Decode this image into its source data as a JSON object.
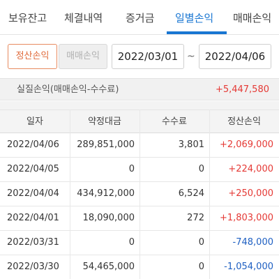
{
  "tabs": [
    {
      "label": "보유잔고"
    },
    {
      "label": "체결내역"
    },
    {
      "label": "증거금"
    },
    {
      "label": "일별손익",
      "active": true
    },
    {
      "label": "매매손익"
    }
  ],
  "filter": {
    "toggle": {
      "selected": "정산손익",
      "other": "매매손익"
    },
    "start_date": "2022/03/01",
    "separator": "~",
    "end_date": "2022/04/06"
  },
  "summary": {
    "label": "실질손익(매매손익-수수료)",
    "value": "+5,447,580"
  },
  "table": {
    "headers": [
      "일자",
      "약정대금",
      "수수료",
      "정산손익"
    ],
    "rows": [
      {
        "date": "2022/04/06",
        "amount": "289,851,000",
        "fee": "3,801",
        "pnl": "+2,069,000",
        "sign": "pos"
      },
      {
        "date": "2022/04/05",
        "amount": "0",
        "fee": "0",
        "pnl": "+224,000",
        "sign": "pos"
      },
      {
        "date": "2022/04/04",
        "amount": "434,912,000",
        "fee": "6,524",
        "pnl": "+250,000",
        "sign": "pos"
      },
      {
        "date": "2022/04/01",
        "amount": "18,090,000",
        "fee": "272",
        "pnl": "+1,803,000",
        "sign": "pos"
      },
      {
        "date": "2022/03/31",
        "amount": "0",
        "fee": "0",
        "pnl": "-748,000",
        "sign": "neg"
      },
      {
        "date": "2022/03/30",
        "amount": "54,465,000",
        "fee": "0",
        "pnl": "-1,054,000",
        "sign": "neg"
      }
    ]
  },
  "colors": {
    "active_tab": "#1976d2",
    "toggle_selected": "#e06a3a",
    "positive": "#e53935",
    "negative": "#1e5fc2"
  }
}
